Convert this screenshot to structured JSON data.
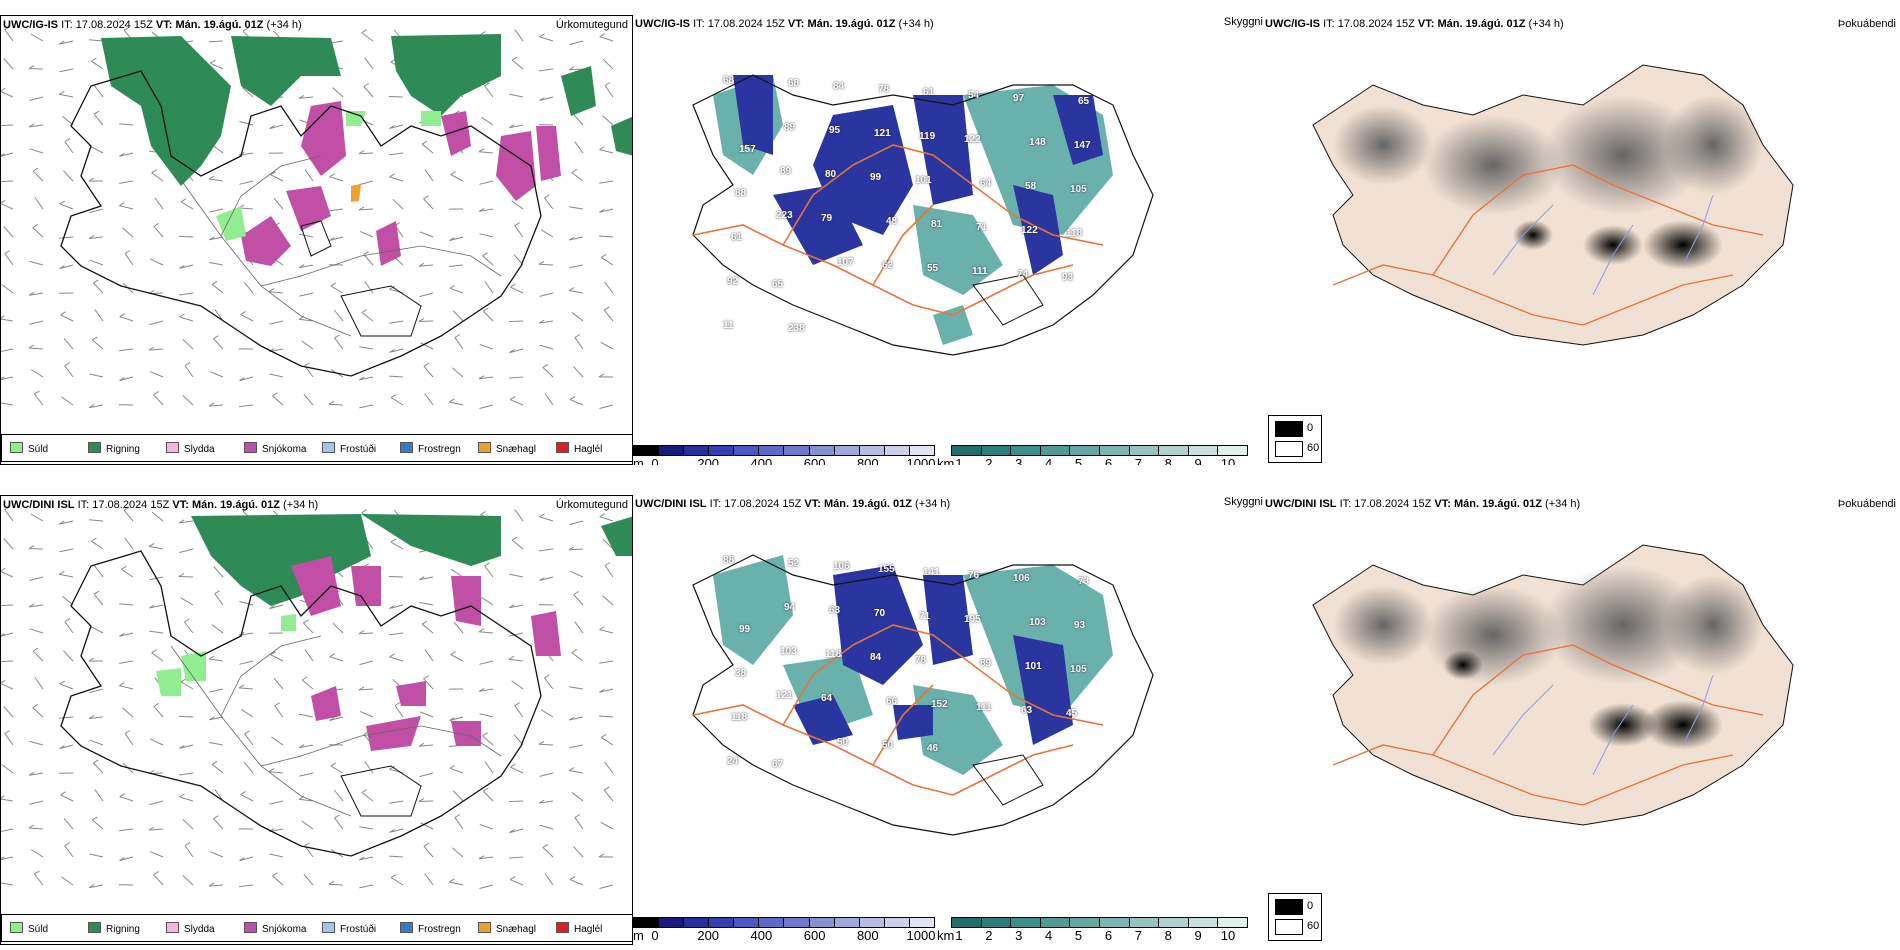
{
  "rows": [
    {
      "model": "UWC/IG-IS",
      "it_label": "IT:",
      "it_value": "17.08.2024 15Z",
      "vt_label": "VT:",
      "vt_value": "Mán. 19.ágú. 01Z",
      "lead": "(+34 h)",
      "precip_title": "Úrkomutegund",
      "cloud_title": "Skyggni",
      "fog_title": "Þokuábendi",
      "cloud_numbers": [
        "68",
        "68",
        "84",
        "78",
        "61",
        "54",
        "97",
        "65",
        "157",
        "89",
        "95",
        "121",
        "119",
        "122",
        "148",
        "147",
        "88",
        "89",
        "80",
        "99",
        "101",
        "64",
        "58",
        "105",
        "61",
        "223",
        "79",
        "48",
        "81",
        "71",
        "122",
        "118",
        "92",
        "65",
        "107",
        "62",
        "55",
        "111",
        "74",
        "93",
        "11",
        "238"
      ]
    },
    {
      "model": "UWC/DINI ISL",
      "it_label": "IT:",
      "it_value": "17.08.2024 15Z",
      "vt_label": "VT:",
      "vt_value": "Mán. 19.ágú. 01Z",
      "lead": "(+34 h)",
      "precip_title": "Úrkomutegund",
      "cloud_title": "Skyggni",
      "fog_title": "Þokuábendi",
      "cloud_numbers": [
        "88",
        "52",
        "106",
        "155",
        "141",
        "76",
        "106",
        "73",
        "99",
        "94",
        "63",
        "70",
        "71",
        "195",
        "103",
        "93",
        "38",
        "103",
        "118",
        "84",
        "78",
        "89",
        "101",
        "105",
        "118",
        "121",
        "64",
        "66",
        "152",
        "111",
        "63",
        "45",
        "24",
        "67",
        "50",
        "50",
        "46"
      ]
    }
  ],
  "precip_legend": [
    {
      "label": "Súld",
      "color": "#90ee90"
    },
    {
      "label": "Rigning",
      "color": "#2e8b57"
    },
    {
      "label": "Slydda",
      "color": "#f4b6e0"
    },
    {
      "label": "Snjókoma",
      "color": "#c04fa5"
    },
    {
      "label": "Frostúði",
      "color": "#9fc5f0"
    },
    {
      "label": "Frostregn",
      "color": "#3a78c9"
    },
    {
      "label": "Snæhagl",
      "color": "#f0a030"
    },
    {
      "label": "Haglél",
      "color": "#e02020"
    }
  ],
  "cloudbase_scale": {
    "unit": "m",
    "ticks": [
      "0",
      "200",
      "400",
      "600",
      "800",
      "1000"
    ],
    "colors": [
      "#000000",
      "#1a1a7a",
      "#26309a",
      "#3540b0",
      "#4a58c0",
      "#5a6ac8",
      "#7078cc",
      "#8890d4",
      "#a0a8dc",
      "#b8bce4",
      "#ccd0ec",
      "#e2e4f4"
    ]
  },
  "visibility_scale": {
    "unit": "km",
    "ticks": [
      "1",
      "2",
      "3",
      "4",
      "5",
      "6",
      "7",
      "8",
      "9",
      "10"
    ],
    "colors": [
      "#1f6e6e",
      "#2a7f7e",
      "#3b8f8c",
      "#4d9a97",
      "#64a8a4",
      "#7cb5b1",
      "#94c3c0",
      "#afd2cf",
      "#c8e1de",
      "#e2f0ee"
    ]
  },
  "cloud_cover_scale": [
    {
      "label": "0",
      "color": "#000000"
    },
    {
      "label": "60",
      "color": "#ffffff"
    }
  ],
  "colors": {
    "rain": "#2e8b57",
    "snow": "#c04fa5",
    "drizzle": "#90ee90",
    "land_fog": "#f1e1d4",
    "roads": "#e8743a",
    "rivers": "#8aa0e8",
    "coast": "#000000",
    "cloud_blue": "#2a35a0",
    "cloud_teal": "#5aa8a2"
  }
}
